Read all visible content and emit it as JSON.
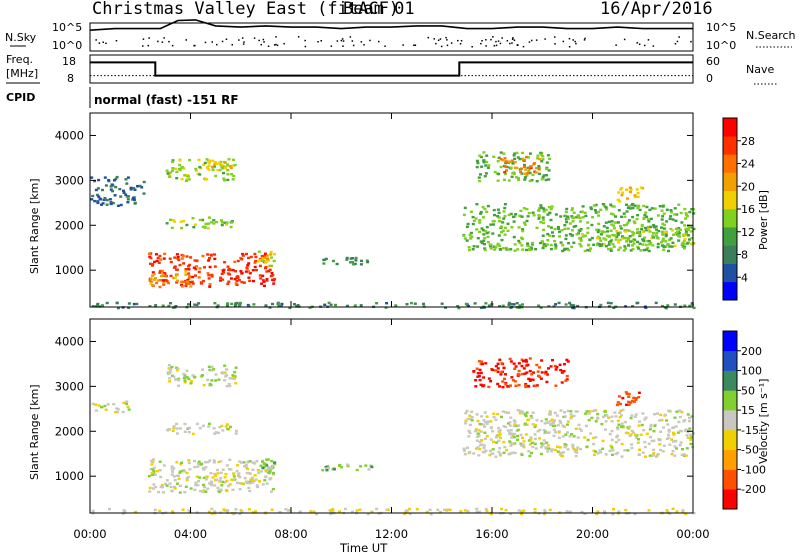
{
  "header": {
    "title": "Christmas Valley East (fitACF)",
    "beam": "Beam 01",
    "date": "16/Apr/2016"
  },
  "noise_panel": {
    "left_label": "N.Sky",
    "right_label": "N.Search",
    "left_ticks": [
      "10^5",
      "10^0"
    ],
    "right_ticks": [
      "10^5",
      "10^0"
    ]
  },
  "freq_panel": {
    "left_label_1": "Freq.",
    "left_label_2": "[MHz]",
    "right_label": "Nave",
    "left_ticks": [
      "18",
      "8"
    ],
    "right_ticks": [
      "60",
      "0"
    ]
  },
  "cpid_panel": {
    "label": "CPID",
    "mode_text": "normal (fast) -151 RF"
  },
  "power_panel": {
    "ylabel": "Slant Range [km]",
    "yticks": [
      "4000",
      "3000",
      "2000",
      "1000"
    ],
    "colorbar_label": "Power [dB]",
    "colorbar_ticks": [
      "28",
      "24",
      "20",
      "16",
      "12",
      "8",
      "4"
    ]
  },
  "velocity_panel": {
    "ylabel": "Slant Range [km]",
    "yticks": [
      "4000",
      "3000",
      "2000",
      "1000"
    ],
    "colorbar_label": "Velocity [m s⁻¹]",
    "colorbar_ticks": [
      "200",
      "100",
      "50",
      "15",
      "-15",
      "-50",
      "-100",
      "-200"
    ]
  },
  "xaxis": {
    "label": "Time UT",
    "ticks": [
      "00:00",
      "04:00",
      "08:00",
      "12:00",
      "16:00",
      "20:00",
      "00:00"
    ]
  },
  "colors": {
    "power_scale": [
      "#0000ff",
      "#2050a0",
      "#3a7f5a",
      "#40a040",
      "#80d020",
      "#f0d000",
      "#f0a000",
      "#ff7000",
      "#ff3000",
      "#ff0000"
    ],
    "velocity_scale": [
      "#ff0000",
      "#ff5000",
      "#ffa000",
      "#f0d000",
      "#c8c8c0",
      "#80d030",
      "#3a8a60",
      "#2050c0",
      "#0000ff"
    ]
  },
  "chart_data": [
    {
      "type": "line",
      "title": "N.Sky / N.Search",
      "x_unit": "hours UT",
      "xlim": [
        0,
        24
      ],
      "scale": "log",
      "series": [
        {
          "name": "N.Sky",
          "x": [
            0,
            1,
            2,
            2.8,
            3.5,
            4.2,
            5,
            6,
            7,
            8,
            9,
            10,
            11,
            12,
            13,
            14,
            15,
            16,
            17,
            18,
            19,
            20,
            21,
            22,
            23,
            24
          ],
          "values": [
            0.5,
            0.6,
            0.6,
            0.6,
            1.4,
            1.5,
            0.8,
            0.7,
            0.8,
            0.7,
            0.7,
            0.6,
            0.7,
            0.7,
            0.8,
            0.8,
            0.6,
            0.6,
            0.7,
            0.7,
            0.6,
            0.6,
            0.7,
            0.6,
            0.6,
            0.6
          ]
        }
      ]
    },
    {
      "type": "line",
      "title": "Freq. / Nave",
      "x_unit": "hours UT",
      "xlim": [
        0,
        24
      ],
      "series": [
        {
          "name": "Freq.",
          "x": [
            0,
            2.6,
            2.6,
            14.7,
            14.7,
            24
          ],
          "values": [
            16,
            16,
            10,
            10,
            16,
            16
          ]
        },
        {
          "name": "Nave",
          "x": [
            0,
            24
          ],
          "values": [
            17,
            17
          ]
        }
      ]
    },
    {
      "type": "heatmap",
      "title": "Power [dB]",
      "x_unit": "hours UT",
      "xlim": [
        0,
        24
      ],
      "ylim": [
        180,
        4500
      ],
      "clim": [
        0,
        30
      ],
      "regions": [
        {
          "t": [
            2.3,
            7.3
          ],
          "r": [
            650,
            1400
          ],
          "value": 26
        },
        {
          "t": [
            2.3,
            4.0
          ],
          "r": [
            650,
            1000
          ],
          "value": 20
        },
        {
          "t": [
            6.6,
            7.3
          ],
          "r": [
            1100,
            1450
          ],
          "value": 16
        },
        {
          "t": [
            3.0,
            5.8
          ],
          "r": [
            1950,
            2200
          ],
          "value": 14
        },
        {
          "t": [
            3.0,
            5.8
          ],
          "r": [
            3000,
            3500
          ],
          "value": 14
        },
        {
          "t": [
            4.5,
            5.6
          ],
          "r": [
            3250,
            3450
          ],
          "value": 16
        },
        {
          "t": [
            0,
            2.1
          ],
          "r": [
            2450,
            3100
          ],
          "value": 6
        },
        {
          "t": [
            9.0,
            11.0
          ],
          "r": [
            1150,
            1300
          ],
          "value": 9
        },
        {
          "t": [
            15.3,
            18.3
          ],
          "r": [
            3000,
            3650
          ],
          "value": 12
        },
        {
          "t": [
            16.3,
            18.0
          ],
          "r": [
            3150,
            3550
          ],
          "value": 22
        },
        {
          "t": [
            14.8,
            24
          ],
          "r": [
            1450,
            2500
          ],
          "value": 12
        },
        {
          "t": [
            19.2,
            24
          ],
          "r": [
            1550,
            1950
          ],
          "value": 13
        },
        {
          "t": [
            20.9,
            22.0
          ],
          "r": [
            2550,
            2900
          ],
          "value": 18
        },
        {
          "t": [
            0,
            24
          ],
          "r": [
            180,
            300
          ],
          "value": 8
        }
      ]
    },
    {
      "type": "heatmap",
      "title": "Velocity [m s⁻¹]",
      "x_unit": "hours UT",
      "xlim": [
        0,
        24
      ],
      "ylim": [
        180,
        4500
      ],
      "clim": [
        -250,
        250
      ],
      "regions": [
        {
          "t": [
            2.3,
            7.3
          ],
          "r": [
            650,
            1400
          ],
          "value": 0
        },
        {
          "t": [
            4.6,
            6.5
          ],
          "r": [
            800,
            1100
          ],
          "value": -40
        },
        {
          "t": [
            6.8,
            7.4
          ],
          "r": [
            1000,
            1450
          ],
          "value": 45
        },
        {
          "t": [
            3.0,
            5.8
          ],
          "r": [
            1950,
            2200
          ],
          "value": 0
        },
        {
          "t": [
            3.0,
            5.8
          ],
          "r": [
            3000,
            3500
          ],
          "value": 10
        },
        {
          "t": [
            0,
            1.5
          ],
          "r": [
            2450,
            2700
          ],
          "value": 0
        },
        {
          "t": [
            9.2,
            11.2
          ],
          "r": [
            1150,
            1300
          ],
          "value": 45
        },
        {
          "t": [
            15.2,
            19.0
          ],
          "r": [
            3000,
            3650
          ],
          "value": -210
        },
        {
          "t": [
            14.8,
            24
          ],
          "r": [
            1450,
            2500
          ],
          "value": 0
        },
        {
          "t": [
            20.9,
            22.0
          ],
          "r": [
            2600,
            2900
          ],
          "value": -180
        },
        {
          "t": [
            0,
            24
          ],
          "r": [
            180,
            300
          ],
          "value": -30
        }
      ]
    }
  ]
}
